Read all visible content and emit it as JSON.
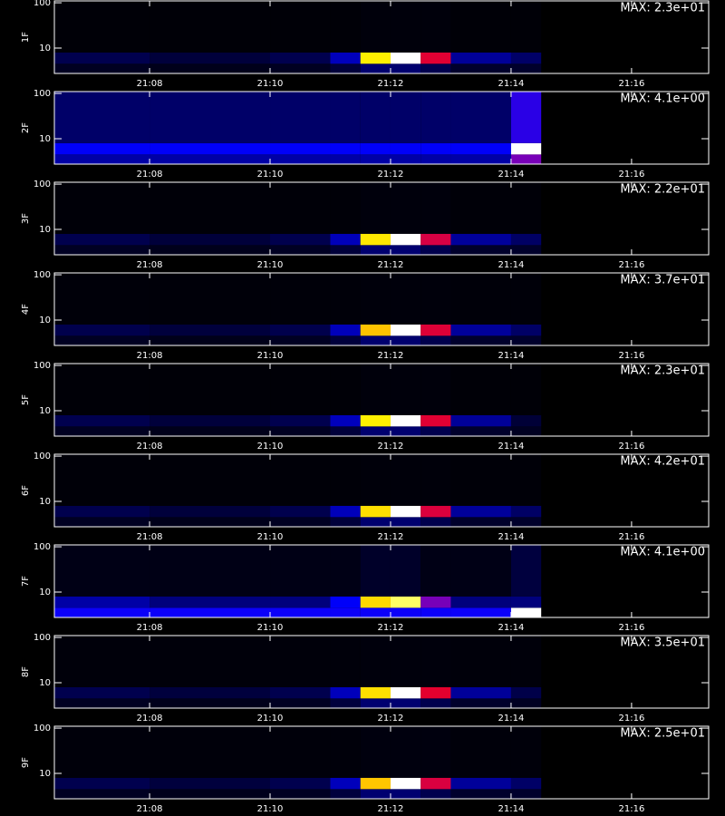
{
  "chart_data": [
    {
      "type": "heatmap",
      "y_label": "1F",
      "max": {
        "value": 23,
        "label": "MAX: 2.3e+01"
      },
      "log_y": true,
      "x_edges": [
        1266.42,
        1268,
        1270,
        1271,
        1271.5,
        1272,
        1272.5,
        1273,
        1274,
        1274.5
      ],
      "y_edges": [
        2.75,
        4.5,
        8,
        110
      ],
      "values": [
        [
          0.9,
          0.7,
          0.9,
          1.6,
          3,
          3,
          2.1,
          1.2,
          1.2
        ],
        [
          2.1,
          1.6,
          2.1,
          5.1,
          20,
          23,
          15,
          4.1,
          2.8
        ],
        [
          0.2,
          0.2,
          0.2,
          0.2,
          0.3,
          0.3,
          0.3,
          0.2,
          0.2
        ]
      ],
      "xlim": [
        1266.42,
        1277.28
      ],
      "ylim": [
        2.75,
        110
      ],
      "xticks": [
        {
          "value": 1268,
          "label": "21:08"
        },
        {
          "value": 1270,
          "label": "21:10"
        },
        {
          "value": 1272,
          "label": "21:12"
        },
        {
          "value": 1274,
          "label": "21:14"
        },
        {
          "value": 1276,
          "label": "21:16"
        }
      ],
      "yticks": [
        10,
        100
      ]
    },
    {
      "type": "heatmap",
      "y_label": "2F",
      "max": {
        "value": 4.1,
        "label": "MAX: 4.1e+00"
      },
      "log_y": true,
      "x_edges": [
        1266.42,
        1268,
        1270,
        1271,
        1271.5,
        1272,
        1272.5,
        1273,
        1274,
        1274.5
      ],
      "y_edges": [
        2.75,
        4.5,
        8,
        110
      ],
      "values": [
        [
          0.8,
          0.8,
          0.8,
          0.8,
          0.8,
          0.8,
          0.8,
          0.8,
          2
        ],
        [
          1.2,
          1.2,
          1.2,
          1.2,
          1.2,
          1.2,
          1.2,
          1.2,
          4.1
        ],
        [
          0.5,
          0.5,
          0.5,
          0.5,
          0.5,
          0.5,
          0.5,
          0.5,
          1.5
        ]
      ],
      "xlim": [
        1266.42,
        1277.28
      ],
      "ylim": [
        2.75,
        110
      ],
      "xticks": [
        {
          "value": 1268,
          "label": "21:08"
        },
        {
          "value": 1270,
          "label": "21:10"
        },
        {
          "value": 1272,
          "label": "21:12"
        },
        {
          "value": 1274,
          "label": "21:14"
        },
        {
          "value": 1276,
          "label": "21:16"
        }
      ],
      "yticks": [
        10,
        100
      ]
    },
    {
      "type": "heatmap",
      "y_label": "3F",
      "max": {
        "value": 22,
        "label": "MAX: 2.2e+01"
      },
      "log_y": true,
      "x_edges": [
        1266.42,
        1268,
        1270,
        1271,
        1271.5,
        1272,
        1272.5,
        1273,
        1274,
        1274.5
      ],
      "y_edges": [
        2.75,
        4.5,
        8,
        110
      ],
      "values": [
        [
          0.9,
          0.7,
          0.9,
          1.5,
          2.9,
          2.9,
          2,
          1.1,
          1.1
        ],
        [
          2,
          1.5,
          2,
          4.8,
          19,
          22,
          14,
          4,
          2.6
        ],
        [
          0.2,
          0.2,
          0.2,
          0.2,
          0.3,
          0.3,
          0.3,
          0.2,
          0.2
        ]
      ],
      "xlim": [
        1266.42,
        1277.28
      ],
      "ylim": [
        2.75,
        110
      ],
      "xticks": [
        {
          "value": 1268,
          "label": "21:08"
        },
        {
          "value": 1270,
          "label": "21:10"
        },
        {
          "value": 1272,
          "label": "21:12"
        },
        {
          "value": 1274,
          "label": "21:14"
        },
        {
          "value": 1276,
          "label": "21:16"
        }
      ],
      "yticks": [
        10,
        100
      ]
    },
    {
      "type": "heatmap",
      "y_label": "4F",
      "max": {
        "value": 37,
        "label": "MAX: 3.7e+01"
      },
      "log_y": true,
      "x_edges": [
        1266.42,
        1268,
        1270,
        1271,
        1271.5,
        1272,
        1272.5,
        1273,
        1274,
        1274.5
      ],
      "y_edges": [
        2.75,
        4.5,
        8,
        110
      ],
      "values": [
        [
          1.5,
          1.1,
          1.5,
          2.6,
          4.8,
          4.8,
          3.3,
          1.9,
          1.9
        ],
        [
          3.3,
          2.6,
          3.3,
          8.1,
          31,
          37,
          24,
          6.7,
          4.4
        ],
        [
          0.4,
          0.4,
          0.4,
          0.4,
          0.5,
          0.5,
          0.5,
          0.4,
          0.4
        ]
      ],
      "xlim": [
        1266.42,
        1277.28
      ],
      "ylim": [
        2.75,
        110
      ],
      "xticks": [
        {
          "value": 1268,
          "label": "21:08"
        },
        {
          "value": 1270,
          "label": "21:10"
        },
        {
          "value": 1272,
          "label": "21:12"
        },
        {
          "value": 1274,
          "label": "21:14"
        },
        {
          "value": 1276,
          "label": "21:16"
        }
      ],
      "yticks": [
        10,
        100
      ]
    },
    {
      "type": "heatmap",
      "y_label": "5F",
      "max": {
        "value": 23,
        "label": "MAX: 2.3e+01"
      },
      "log_y": true,
      "x_edges": [
        1266.42,
        1268,
        1270,
        1271,
        1271.5,
        1272,
        1272.5,
        1273,
        1274,
        1274.5
      ],
      "y_edges": [
        2.75,
        4.5,
        8,
        110
      ],
      "values": [
        [
          0.9,
          0.7,
          0.9,
          1.6,
          3,
          3,
          2.1,
          1.2,
          0.9
        ],
        [
          2.1,
          1.6,
          2.1,
          5.1,
          20,
          23,
          15,
          4.1,
          1.5
        ],
        [
          0.2,
          0.2,
          0.2,
          0.2,
          0.3,
          0.3,
          0.3,
          0.2,
          0.2
        ]
      ],
      "xlim": [
        1266.42,
        1277.28
      ],
      "ylim": [
        2.75,
        110
      ],
      "xticks": [
        {
          "value": 1268,
          "label": "21:08"
        },
        {
          "value": 1270,
          "label": "21:10"
        },
        {
          "value": 1272,
          "label": "21:12"
        },
        {
          "value": 1274,
          "label": "21:14"
        },
        {
          "value": 1276,
          "label": "21:16"
        }
      ],
      "yticks": [
        10,
        100
      ]
    },
    {
      "type": "heatmap",
      "y_label": "6F",
      "max": {
        "value": 42,
        "label": "MAX: 4.2e+01"
      },
      "log_y": true,
      "x_edges": [
        1266.42,
        1268,
        1270,
        1271,
        1271.5,
        1272,
        1272.5,
        1273,
        1274,
        1274.5
      ],
      "y_edges": [
        2.75,
        4.5,
        8,
        110
      ],
      "values": [
        [
          1.7,
          1.3,
          1.7,
          2.9,
          5.5,
          5.5,
          3.8,
          2.1,
          2.1
        ],
        [
          3.8,
          2.9,
          3.8,
          9.2,
          36,
          42,
          27,
          7.6,
          5
        ],
        [
          0.4,
          0.4,
          0.4,
          0.4,
          0.5,
          0.5,
          0.5,
          0.4,
          0.4
        ]
      ],
      "xlim": [
        1266.42,
        1277.28
      ],
      "ylim": [
        2.75,
        110
      ],
      "xticks": [
        {
          "value": 1268,
          "label": "21:08"
        },
        {
          "value": 1270,
          "label": "21:10"
        },
        {
          "value": 1272,
          "label": "21:12"
        },
        {
          "value": 1274,
          "label": "21:14"
        },
        {
          "value": 1276,
          "label": "21:16"
        }
      ],
      "yticks": [
        10,
        100
      ]
    },
    {
      "type": "heatmap",
      "y_label": "7F",
      "max": {
        "value": 4.1,
        "label": "MAX: 4.1e+00"
      },
      "log_y": true,
      "x_edges": [
        1266.42,
        1268,
        1270,
        1271,
        1271.5,
        1272,
        1272.5,
        1273,
        1274,
        1274.5
      ],
      "y_edges": [
        2.75,
        4.5,
        8,
        110
      ],
      "values": [
        [
          1.3,
          1.3,
          1.3,
          1.3,
          1.3,
          1.3,
          1.3,
          1.3,
          4.1
        ],
        [
          0.8,
          0.6,
          0.6,
          1.2,
          3.5,
          3.8,
          2,
          0.6,
          0.6
        ],
        [
          0.1,
          0.1,
          0.1,
          0.1,
          0.2,
          0.2,
          0.1,
          0.1,
          0.3
        ]
      ],
      "xlim": [
        1266.42,
        1277.28
      ],
      "ylim": [
        2.75,
        110
      ],
      "xticks": [
        {
          "value": 1268,
          "label": "21:08"
        },
        {
          "value": 1270,
          "label": "21:10"
        },
        {
          "value": 1272,
          "label": "21:12"
        },
        {
          "value": 1274,
          "label": "21:14"
        },
        {
          "value": 1276,
          "label": "21:16"
        }
      ],
      "yticks": [
        10,
        100
      ]
    },
    {
      "type": "heatmap",
      "y_label": "8F",
      "max": {
        "value": 35,
        "label": "MAX: 3.5e+01"
      },
      "log_y": true,
      "x_edges": [
        1266.42,
        1268,
        1270,
        1271,
        1271.5,
        1272,
        1272.5,
        1273,
        1274,
        1274.5
      ],
      "y_edges": [
        2.75,
        4.5,
        8,
        110
      ],
      "values": [
        [
          1.4,
          1.1,
          1.4,
          2.5,
          4.6,
          4.6,
          3.2,
          1.8,
          1.4
        ],
        [
          3.2,
          2.5,
          3.2,
          7.7,
          30,
          35,
          23,
          6.3,
          3
        ],
        [
          0.4,
          0.4,
          0.4,
          0.4,
          0.5,
          0.5,
          0.5,
          0.4,
          0.4
        ]
      ],
      "xlim": [
        1266.42,
        1277.28
      ],
      "ylim": [
        2.75,
        110
      ],
      "xticks": [
        {
          "value": 1268,
          "label": "21:08"
        },
        {
          "value": 1270,
          "label": "21:10"
        },
        {
          "value": 1272,
          "label": "21:12"
        },
        {
          "value": 1274,
          "label": "21:14"
        },
        {
          "value": 1276,
          "label": "21:16"
        }
      ],
      "yticks": [
        10,
        100
      ]
    },
    {
      "type": "heatmap",
      "y_label": "9F",
      "max": {
        "value": 25,
        "label": "MAX: 2.5e+01"
      },
      "log_y": true,
      "x_edges": [
        1266.42,
        1268,
        1270,
        1271,
        1271.5,
        1272,
        1272.5,
        1273,
        1274,
        1274.5
      ],
      "y_edges": [
        2.75,
        4.5,
        8,
        110
      ],
      "values": [
        [
          1,
          0.8,
          1,
          1.8,
          3.3,
          3.3,
          2.3,
          1.3,
          1.3
        ],
        [
          2.3,
          1.8,
          2.3,
          5.5,
          21,
          25,
          16,
          4.5,
          3
        ],
        [
          0.3,
          0.3,
          0.3,
          0.3,
          0.4,
          0.4,
          0.4,
          0.3,
          0.3
        ]
      ],
      "xlim": [
        1266.42,
        1277.28
      ],
      "ylim": [
        2.75,
        110
      ],
      "xticks": [
        {
          "value": 1268,
          "label": "21:08"
        },
        {
          "value": 1270,
          "label": "21:10"
        },
        {
          "value": 1272,
          "label": "21:12"
        },
        {
          "value": 1274,
          "label": "21:14"
        },
        {
          "value": 1276,
          "label": "21:16"
        }
      ],
      "yticks": [
        10,
        100
      ]
    }
  ]
}
